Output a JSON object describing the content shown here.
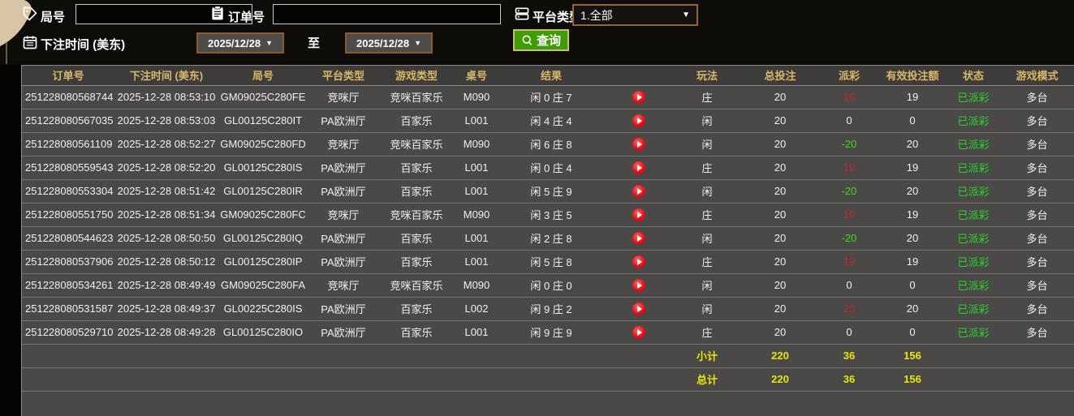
{
  "toolbar": {
    "round_label": "局号",
    "round_value": "",
    "order_label": "订单号",
    "order_value": "",
    "platform_label": "平台类型",
    "platform_value": "1.全部",
    "bet_time_label": "下注时间 (美东)",
    "date_from": "2025/12/28",
    "to_label": "至",
    "date_to": "2025/12/28",
    "query_label": "查询",
    "icons": [
      "tag-icon",
      "clipboard-icon",
      "server-icon",
      "calendar-icon",
      "search-icon"
    ]
  },
  "colors": {
    "header_gold": "#d7b86a",
    "payout_positive_red": "#c22634",
    "payout_negative_green": "#3fd61e",
    "status_green": "#2ad32a",
    "summary_yellow": "#e8e606",
    "button_green": "#3f9c05",
    "date_border_brown": "#8a5a28",
    "row_bg": "#4b4947"
  },
  "table": {
    "headers": [
      "订单号",
      "下注时间 (美东)",
      "局号",
      "平台类型",
      "游戏类型",
      "桌号",
      "结果",
      "",
      "玩法",
      "总投注",
      "派彩",
      "有效投注额",
      "状态",
      "游戏模式"
    ],
    "rows": [
      {
        "order": "251228080568744",
        "time": "2025-12-28 08:53:10",
        "round": "GM09025C280FE",
        "platform": "竞咪厅",
        "game": "竞咪百家乐",
        "table_no": "M090",
        "result": "闲 0 庄 7",
        "bet": "庄",
        "total": "20",
        "payout": "19",
        "payout_color": "red",
        "valid": "19",
        "status": "已派彩",
        "mode": "多台"
      },
      {
        "order": "251228080567035",
        "time": "2025-12-28 08:53:03",
        "round": "GL00125C280IT",
        "platform": "PA欧洲厅",
        "game": "百家乐",
        "table_no": "L001",
        "result": "闲 4 庄 4",
        "bet": "闲",
        "total": "20",
        "payout": "0",
        "payout_color": "white",
        "valid": "0",
        "status": "已派彩",
        "mode": "多台"
      },
      {
        "order": "251228080561109",
        "time": "2025-12-28 08:52:27",
        "round": "GM09025C280FD",
        "platform": "竞咪厅",
        "game": "竞咪百家乐",
        "table_no": "M090",
        "result": "闲 6 庄 8",
        "bet": "闲",
        "total": "20",
        "payout": "-20",
        "payout_color": "green",
        "valid": "20",
        "status": "已派彩",
        "mode": "多台"
      },
      {
        "order": "251228080559543",
        "time": "2025-12-28 08:52:20",
        "round": "GL00125C280IS",
        "platform": "PA欧洲厅",
        "game": "百家乐",
        "table_no": "L001",
        "result": "闲 0 庄 4",
        "bet": "庄",
        "total": "20",
        "payout": "19",
        "payout_color": "red",
        "valid": "19",
        "status": "已派彩",
        "mode": "多台"
      },
      {
        "order": "251228080553304",
        "time": "2025-12-28 08:51:42",
        "round": "GL00125C280IR",
        "platform": "PA欧洲厅",
        "game": "百家乐",
        "table_no": "L001",
        "result": "闲 5 庄 9",
        "bet": "闲",
        "total": "20",
        "payout": "-20",
        "payout_color": "green",
        "valid": "20",
        "status": "已派彩",
        "mode": "多台"
      },
      {
        "order": "251228080551750",
        "time": "2025-12-28 08:51:34",
        "round": "GM09025C280FC",
        "platform": "竞咪厅",
        "game": "竞咪百家乐",
        "table_no": "M090",
        "result": "闲 3 庄 5",
        "bet": "庄",
        "total": "20",
        "payout": "19",
        "payout_color": "red",
        "valid": "19",
        "status": "已派彩",
        "mode": "多台"
      },
      {
        "order": "251228080544623",
        "time": "2025-12-28 08:50:50",
        "round": "GL00125C280IQ",
        "platform": "PA欧洲厅",
        "game": "百家乐",
        "table_no": "L001",
        "result": "闲 2 庄 8",
        "bet": "闲",
        "total": "20",
        "payout": "-20",
        "payout_color": "green",
        "valid": "20",
        "status": "已派彩",
        "mode": "多台"
      },
      {
        "order": "251228080537906",
        "time": "2025-12-28 08:50:12",
        "round": "GL00125C280IP",
        "platform": "PA欧洲厅",
        "game": "百家乐",
        "table_no": "L001",
        "result": "闲 5 庄 8",
        "bet": "庄",
        "total": "20",
        "payout": "19",
        "payout_color": "red",
        "valid": "19",
        "status": "已派彩",
        "mode": "多台"
      },
      {
        "order": "251228080534261",
        "time": "2025-12-28 08:49:49",
        "round": "GM09025C280FA",
        "platform": "竞咪厅",
        "game": "竞咪百家乐",
        "table_no": "M090",
        "result": "闲 0 庄 0",
        "bet": "闲",
        "total": "20",
        "payout": "0",
        "payout_color": "white",
        "valid": "0",
        "status": "已派彩",
        "mode": "多台"
      },
      {
        "order": "251228080531587",
        "time": "2025-12-28 08:49:37",
        "round": "GL00225C280IS",
        "platform": "PA欧洲厅",
        "game": "百家乐",
        "table_no": "L002",
        "result": "闲 9 庄 2",
        "bet": "闲",
        "total": "20",
        "payout": "20",
        "payout_color": "red",
        "valid": "20",
        "status": "已派彩",
        "mode": "多台"
      },
      {
        "order": "251228080529710",
        "time": "2025-12-28 08:49:28",
        "round": "GL00125C280IO",
        "platform": "PA欧洲厅",
        "game": "百家乐",
        "table_no": "L001",
        "result": "闲 9 庄 9",
        "bet": "庄",
        "total": "20",
        "payout": "0",
        "payout_color": "white",
        "valid": "0",
        "status": "已派彩",
        "mode": "多台"
      }
    ],
    "subtotal": {
      "label": "小计",
      "total_bet": "220",
      "payout": "36",
      "valid_bet": "156"
    },
    "grand_total": {
      "label": "总计",
      "total_bet": "220",
      "payout": "36",
      "valid_bet": "156"
    }
  }
}
